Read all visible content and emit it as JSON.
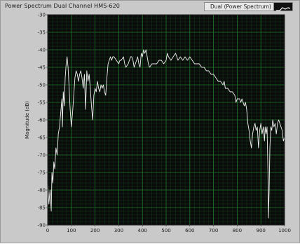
{
  "window": {
    "title": "Power Spectrum Dual Channel HMS-620"
  },
  "legend": {
    "label": "Dual (Power Spectrum)",
    "line_color": "#ffffff"
  },
  "chart_data": {
    "type": "line",
    "title": "Power Spectrum Dual Channel HMS-620",
    "xlabel": "",
    "ylabel": "Magnitude (dB)",
    "xlim": [
      0,
      1000
    ],
    "ylim": [
      -90,
      -30
    ],
    "xticks": [
      0,
      100,
      200,
      300,
      400,
      500,
      600,
      700,
      800,
      900,
      1000
    ],
    "yticks": [
      -30,
      -35,
      -40,
      -45,
      -50,
      -55,
      -60,
      -65,
      -70,
      -75,
      -80,
      -85,
      -90
    ],
    "grid": true,
    "legend_position": "top-right",
    "background_color": "#0b0b0b",
    "grid_color": "#1f7a2a",
    "series": [
      {
        "name": "Dual (Power Spectrum)",
        "color": "#f2f2f2",
        "points": [
          [
            0,
            -78
          ],
          [
            5,
            -84
          ],
          [
            10,
            -80
          ],
          [
            15,
            -86
          ],
          [
            18,
            -75
          ],
          [
            22,
            -78
          ],
          [
            26,
            -72
          ],
          [
            30,
            -74
          ],
          [
            35,
            -68
          ],
          [
            40,
            -70
          ],
          [
            45,
            -64
          ],
          [
            50,
            -62
          ],
          [
            55,
            -58
          ],
          [
            60,
            -54
          ],
          [
            62,
            -62
          ],
          [
            66,
            -52
          ],
          [
            70,
            -56
          ],
          [
            74,
            -48
          ],
          [
            78,
            -44
          ],
          [
            82,
            -42
          ],
          [
            86,
            -45
          ],
          [
            90,
            -50
          ],
          [
            95,
            -57
          ],
          [
            100,
            -62
          ],
          [
            105,
            -58
          ],
          [
            110,
            -53
          ],
          [
            115,
            -48
          ],
          [
            120,
            -46
          ],
          [
            125,
            -47
          ],
          [
            130,
            -49
          ],
          [
            135,
            -47
          ],
          [
            140,
            -46
          ],
          [
            145,
            -48
          ],
          [
            150,
            -51
          ],
          [
            155,
            -47
          ],
          [
            160,
            -57
          ],
          [
            165,
            -46
          ],
          [
            170,
            -49
          ],
          [
            175,
            -47
          ],
          [
            180,
            -51
          ],
          [
            185,
            -56
          ],
          [
            190,
            -60
          ],
          [
            195,
            -53
          ],
          [
            200,
            -51
          ],
          [
            205,
            -52
          ],
          [
            210,
            -49
          ],
          [
            215,
            -51
          ],
          [
            220,
            -52
          ],
          [
            225,
            -50
          ],
          [
            230,
            -51
          ],
          [
            235,
            -50
          ],
          [
            240,
            -52
          ],
          [
            245,
            -53
          ],
          [
            250,
            -48
          ],
          [
            255,
            -44
          ],
          [
            260,
            -43
          ],
          [
            265,
            -42
          ],
          [
            270,
            -43
          ],
          [
            275,
            -42
          ],
          [
            280,
            -42
          ],
          [
            290,
            -43
          ],
          [
            300,
            -44
          ],
          [
            305,
            -43
          ],
          [
            310,
            -43
          ],
          [
            320,
            -42
          ],
          [
            325,
            -44
          ],
          [
            330,
            -45
          ],
          [
            340,
            -44
          ],
          [
            345,
            -43
          ],
          [
            350,
            -42
          ],
          [
            355,
            -42
          ],
          [
            360,
            -43
          ],
          [
            365,
            -45
          ],
          [
            370,
            -44
          ],
          [
            375,
            -43
          ],
          [
            380,
            -42
          ],
          [
            385,
            -44
          ],
          [
            390,
            -45
          ],
          [
            395,
            -41
          ],
          [
            400,
            -42
          ],
          [
            405,
            -40
          ],
          [
            410,
            -41
          ],
          [
            415,
            -40
          ],
          [
            420,
            -42
          ],
          [
            425,
            -44
          ],
          [
            430,
            -45
          ],
          [
            440,
            -44
          ],
          [
            450,
            -44
          ],
          [
            460,
            -44
          ],
          [
            470,
            -43
          ],
          [
            480,
            -43
          ],
          [
            490,
            -44
          ],
          [
            500,
            -43
          ],
          [
            505,
            -41
          ],
          [
            510,
            -42
          ],
          [
            520,
            -43
          ],
          [
            530,
            -42
          ],
          [
            540,
            -41
          ],
          [
            545,
            -42
          ],
          [
            550,
            -43
          ],
          [
            560,
            -42
          ],
          [
            570,
            -43
          ],
          [
            580,
            -42
          ],
          [
            590,
            -43
          ],
          [
            600,
            -42
          ],
          [
            610,
            -43
          ],
          [
            620,
            -44
          ],
          [
            630,
            -44
          ],
          [
            640,
            -44
          ],
          [
            650,
            -45
          ],
          [
            660,
            -45
          ],
          [
            670,
            -46
          ],
          [
            680,
            -46
          ],
          [
            690,
            -47
          ],
          [
            700,
            -47
          ],
          [
            710,
            -48
          ],
          [
            720,
            -49
          ],
          [
            730,
            -49
          ],
          [
            740,
            -50
          ],
          [
            745,
            -49
          ],
          [
            750,
            -51
          ],
          [
            760,
            -51
          ],
          [
            770,
            -52
          ],
          [
            780,
            -52
          ],
          [
            790,
            -53
          ],
          [
            795,
            -55
          ],
          [
            800,
            -54
          ],
          [
            810,
            -54
          ],
          [
            815,
            -55
          ],
          [
            820,
            -54
          ],
          [
            830,
            -56
          ],
          [
            835,
            -55
          ],
          [
            840,
            -57
          ],
          [
            845,
            -61
          ],
          [
            850,
            -63
          ],
          [
            855,
            -66
          ],
          [
            860,
            -68
          ],
          [
            865,
            -64
          ],
          [
            870,
            -62
          ],
          [
            875,
            -61
          ],
          [
            880,
            -63
          ],
          [
            885,
            -62
          ],
          [
            890,
            -68
          ],
          [
            895,
            -63
          ],
          [
            900,
            -61
          ],
          [
            905,
            -64
          ],
          [
            910,
            -62
          ],
          [
            915,
            -66
          ],
          [
            918,
            -62
          ],
          [
            922,
            -64
          ],
          [
            926,
            -62
          ],
          [
            930,
            -75
          ],
          [
            932,
            -88
          ],
          [
            935,
            -80
          ],
          [
            938,
            -68
          ],
          [
            942,
            -62
          ],
          [
            946,
            -63
          ],
          [
            950,
            -60
          ],
          [
            955,
            -62
          ],
          [
            960,
            -61
          ],
          [
            965,
            -64
          ],
          [
            970,
            -61
          ],
          [
            975,
            -60
          ],
          [
            980,
            -61
          ],
          [
            985,
            -62
          ],
          [
            990,
            -63
          ],
          [
            995,
            -66
          ],
          [
            1000,
            -65
          ]
        ]
      }
    ]
  }
}
